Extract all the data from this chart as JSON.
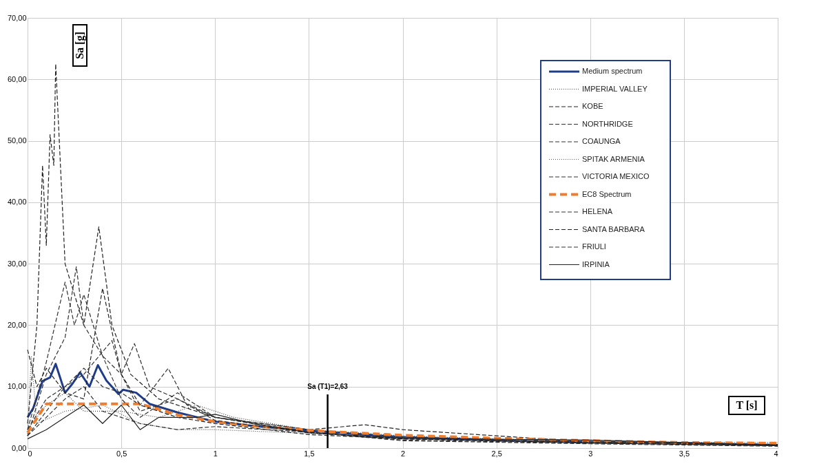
{
  "chart_data": {
    "type": "line",
    "xlabel": "T [s]",
    "ylabel": "Sa [g]",
    "xlim": [
      0,
      4
    ],
    "ylim": [
      0,
      70
    ],
    "xticks": [
      0,
      {
        "value": 0.5,
        "label": "0,5"
      },
      1,
      {
        "value": 1.5,
        "label": "1,5"
      },
      2,
      {
        "value": 2.5,
        "label": "2,5"
      },
      3,
      {
        "value": 3.5,
        "label": "3,5"
      },
      4
    ],
    "yticks": [
      {
        "value": 0,
        "label": "0,00"
      },
      {
        "value": 10,
        "label": "10,00"
      },
      {
        "value": 20,
        "label": "20,00"
      },
      {
        "value": 30,
        "label": "30,00"
      },
      {
        "value": 40,
        "label": "40,00"
      },
      {
        "value": 50,
        "label": "50,00"
      },
      {
        "value": 60,
        "label": "60,00"
      },
      {
        "value": 70,
        "label": "70,00"
      }
    ],
    "grid": true,
    "legend": "top right",
    "marker": "none",
    "ref_lines": [
      {
        "axis": "x",
        "value": 1.6,
        "color": "#000000",
        "line_style": "solid"
      }
    ],
    "annotations": [
      "Sa (T1)=2,63"
    ],
    "series": [
      {
        "name": "Medium spectrum",
        "color": "#1f3c88",
        "line_style": "solid",
        "x": [
          0,
          0.03,
          0.08,
          0.12,
          0.15,
          0.2,
          0.24,
          0.28,
          0.33,
          0.375,
          0.42,
          0.485,
          0.51,
          0.58,
          0.65,
          0.8,
          1,
          1.2,
          1.5,
          1.6,
          2,
          2.5,
          3,
          3.5,
          4
        ],
        "values": [
          5,
          6.5,
          10.9,
          11.5,
          13.7,
          9,
          10.5,
          12.3,
          10,
          13.5,
          11,
          8.8,
          9.5,
          9,
          7.2,
          5.8,
          4.3,
          3.6,
          2.8,
          2.6,
          1.8,
          1.3,
          1,
          0.8,
          0.5
        ]
      },
      {
        "name": "IMPERIAL VALLEY",
        "color": "#404040",
        "line_style": "dotted",
        "x": [
          0,
          0.1,
          0.2,
          0.3,
          0.5,
          0.7,
          0.9,
          1.1,
          1.5,
          2,
          3,
          4
        ],
        "values": [
          3,
          7,
          9,
          6,
          6,
          5,
          7,
          5,
          3,
          2,
          1,
          0.9
        ]
      },
      {
        "name": "KOBE",
        "color": "#202020",
        "line_style": "dashed",
        "x": [
          0,
          0.05,
          0.08,
          0.1,
          0.12,
          0.14,
          0.15,
          0.2,
          0.3,
          0.38,
          0.45,
          0.55,
          0.7,
          1,
          1.5,
          1.8,
          2,
          3,
          4
        ],
        "values": [
          4,
          20,
          46,
          33,
          51,
          46,
          62.5,
          30,
          20,
          36,
          20,
          12,
          8,
          5,
          3,
          3.8,
          3,
          1,
          0.6
        ]
      },
      {
        "name": "NORTHRIDGE",
        "color": "#303030",
        "line_style": "dashed",
        "x": [
          0,
          0.1,
          0.2,
          0.3,
          0.4,
          0.5,
          0.6,
          0.75,
          0.85,
          1,
          1.5,
          2,
          3,
          4
        ],
        "values": [
          2,
          6,
          10,
          13,
          10,
          9,
          7,
          13,
          7,
          5,
          2.5,
          1.5,
          0.9,
          0.5
        ]
      },
      {
        "name": "COAUNGA",
        "color": "#303030",
        "line_style": "dashed",
        "x": [
          0,
          0.1,
          0.2,
          0.26,
          0.3,
          0.4,
          0.5,
          0.6,
          0.8,
          1,
          1.5,
          2,
          3,
          4
        ],
        "values": [
          2,
          12,
          18,
          29.5,
          20,
          15,
          12,
          6,
          8,
          5,
          3,
          1.8,
          1,
          0.4
        ]
      },
      {
        "name": "SPITAK ARMENIA",
        "color": "#505050",
        "line_style": "dotted",
        "x": [
          0,
          0.02,
          0.05,
          0.2,
          0.4,
          0.6,
          0.8,
          1,
          1.5,
          2,
          3,
          4
        ],
        "values": [
          2,
          15,
          4,
          6,
          7,
          4,
          3,
          3,
          2.4,
          1.7,
          1,
          0.6
        ]
      },
      {
        "name": "VICTORIA MEXICO",
        "color": "#303030",
        "line_style": "dashed",
        "x": [
          0,
          0.1,
          0.2,
          0.3,
          0.4,
          0.6,
          0.8,
          1,
          1.5,
          2,
          3,
          4
        ],
        "values": [
          2,
          5,
          8,
          10,
          6,
          4,
          3,
          3.5,
          2.6,
          1.3,
          0.8,
          0.4
        ]
      },
      {
        "name": "EC8 Spectrum",
        "color": "#ed7d31",
        "line_style": "dashed",
        "x": [
          0,
          0.1,
          0.6,
          0.8,
          1,
          1.2,
          1.6,
          2,
          2.5,
          3,
          3.5,
          4
        ],
        "values": [
          2.5,
          7.2,
          7.2,
          5.4,
          4.3,
          3.6,
          2.7,
          2.1,
          1.6,
          1.2,
          0.9,
          0.8
        ]
      },
      {
        "name": "HELENA",
        "color": "#303030",
        "line_style": "dashed",
        "x": [
          0,
          0.1,
          0.2,
          0.3,
          0.45,
          0.5,
          0.57,
          0.65,
          0.8,
          1,
          1.5,
          2,
          3,
          4
        ],
        "values": [
          3,
          8,
          10,
          12,
          17.5,
          12,
          17,
          10,
          8,
          4.5,
          2.5,
          1.5,
          1,
          0.5
        ]
      },
      {
        "name": "SANTA BARBARA",
        "color": "#202020",
        "line_style": "dashed",
        "x": [
          0,
          0.05,
          0.1,
          0.2,
          0.3,
          0.4,
          0.5,
          0.6,
          0.8,
          1,
          1.5,
          2,
          3,
          4
        ],
        "values": [
          16,
          10,
          13,
          9,
          8,
          26,
          12,
          7,
          5,
          4,
          2.2,
          1.5,
          0.8,
          0.4
        ]
      },
      {
        "name": "FRIULI",
        "color": "#303030",
        "line_style": "dashed",
        "x": [
          0,
          0.1,
          0.2,
          0.25,
          0.3,
          0.4,
          0.5,
          0.6,
          0.8,
          1,
          1.5,
          2,
          3,
          4
        ],
        "values": [
          3,
          14,
          27,
          20,
          25,
          15,
          8,
          5,
          9,
          5,
          2.6,
          1.2,
          0.7,
          0.3
        ]
      },
      {
        "name": "IRPINIA",
        "color": "#202020",
        "line_style": "solid",
        "x": [
          0,
          0.1,
          0.2,
          0.3,
          0.4,
          0.5,
          0.6,
          0.7,
          0.9,
          1,
          1.2,
          1.5,
          2,
          3,
          4
        ],
        "values": [
          1.5,
          3,
          5,
          7,
          4,
          7,
          3,
          5,
          5,
          5.5,
          4,
          2.5,
          1.6,
          1.3,
          0.5
        ]
      }
    ]
  }
}
